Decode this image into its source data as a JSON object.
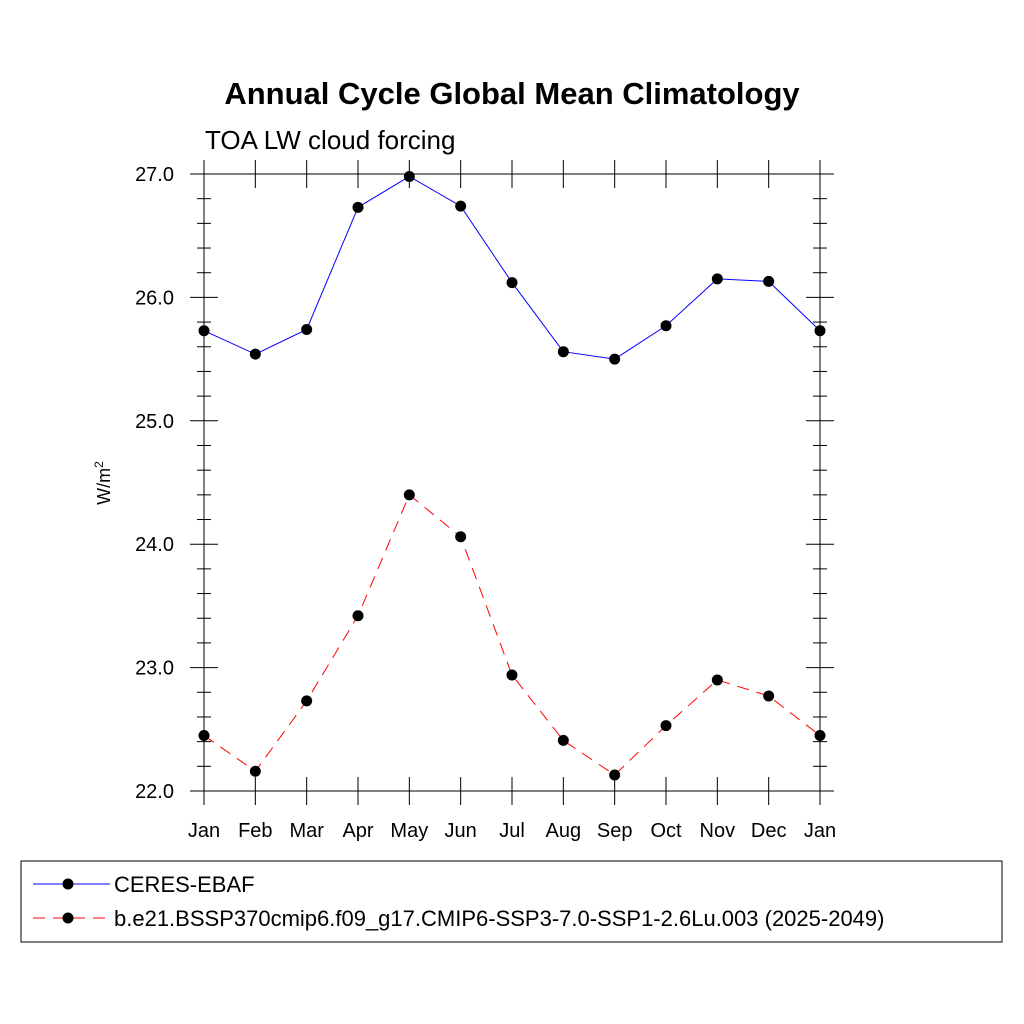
{
  "chart_data": {
    "type": "line",
    "title": "Annual Cycle Global Mean Climatology",
    "subtitle": "TOA LW cloud forcing",
    "ylabel": "W/m",
    "ylabel_superscript": "2",
    "xlabel": "",
    "categories": [
      "Jan",
      "Feb",
      "Mar",
      "Apr",
      "May",
      "Jun",
      "Jul",
      "Aug",
      "Sep",
      "Oct",
      "Nov",
      "Dec",
      "Jan"
    ],
    "ylim": [
      22.0,
      27.0
    ],
    "yticks": [
      "22.0",
      "23.0",
      "24.0",
      "25.0",
      "26.0",
      "27.0"
    ],
    "series": [
      {
        "name": "CERES-EBAF",
        "color": "#0000ff",
        "dash": "solid",
        "values": [
          25.73,
          25.54,
          25.74,
          26.73,
          26.98,
          26.74,
          26.12,
          25.56,
          25.5,
          25.77,
          26.15,
          26.13,
          25.73
        ]
      },
      {
        "name": "b.e21.BSSP370cmip6.f09_g17.CMIP6-SSP3-7.0-SSP1-2.6Lu.003 (2025-2049)",
        "color": "#ff0000",
        "dash": "dashed",
        "values": [
          22.45,
          22.16,
          22.73,
          23.42,
          24.4,
          24.06,
          22.94,
          22.41,
          22.13,
          22.53,
          22.9,
          22.77,
          22.45
        ]
      }
    ],
    "legend_position": "bottom"
  }
}
